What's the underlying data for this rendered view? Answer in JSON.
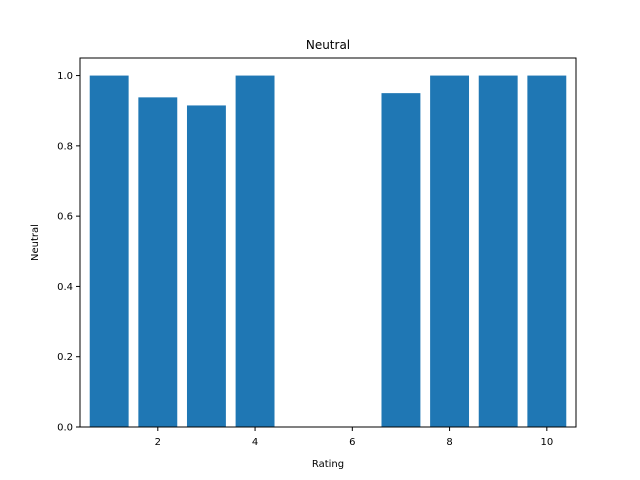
{
  "chart_data": {
    "type": "bar",
    "title": "Neutral",
    "xlabel": "Rating",
    "ylabel": "Neutral",
    "x": [
      1,
      2,
      3,
      4,
      7,
      8,
      9,
      10
    ],
    "values": [
      1.0,
      0.938,
      0.915,
      1.0,
      0.95,
      1.0,
      1.0,
      1.0
    ],
    "xlim": [
      0.4,
      10.6
    ],
    "ylim": [
      0,
      1.05
    ],
    "xticks": [
      2,
      4,
      6,
      8,
      10
    ],
    "yticks": [
      0.0,
      0.2,
      0.4,
      0.6,
      0.8,
      1.0
    ],
    "bar_color": "#1f77b4",
    "grid": false
  }
}
